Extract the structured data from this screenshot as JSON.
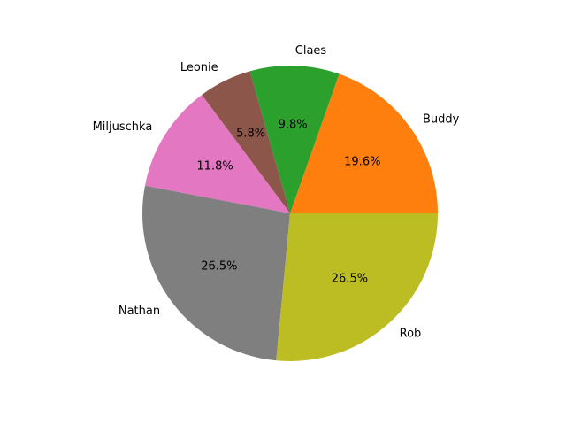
{
  "chart_data": {
    "type": "pie",
    "title": "",
    "start_angle_deg": 0,
    "direction": "counterclockwise",
    "slices": [
      {
        "label": "Buddy",
        "value": 19.6,
        "pct_label": "19.6%",
        "color": "#ff7f0e"
      },
      {
        "label": "Claes",
        "value": 9.8,
        "pct_label": "9.8%",
        "color": "#2ca02c"
      },
      {
        "label": "Leonie",
        "value": 5.8,
        "pct_label": "5.8%",
        "color": "#8c564b"
      },
      {
        "label": "Miljuschka",
        "value": 11.8,
        "pct_label": "11.8%",
        "color": "#e377c2"
      },
      {
        "label": "Nathan",
        "value": 26.5,
        "pct_label": "26.5%",
        "color": "#7f7f7f"
      },
      {
        "label": "Rob",
        "value": 26.5,
        "pct_label": "26.5%",
        "color": "#bcbd22"
      }
    ]
  }
}
